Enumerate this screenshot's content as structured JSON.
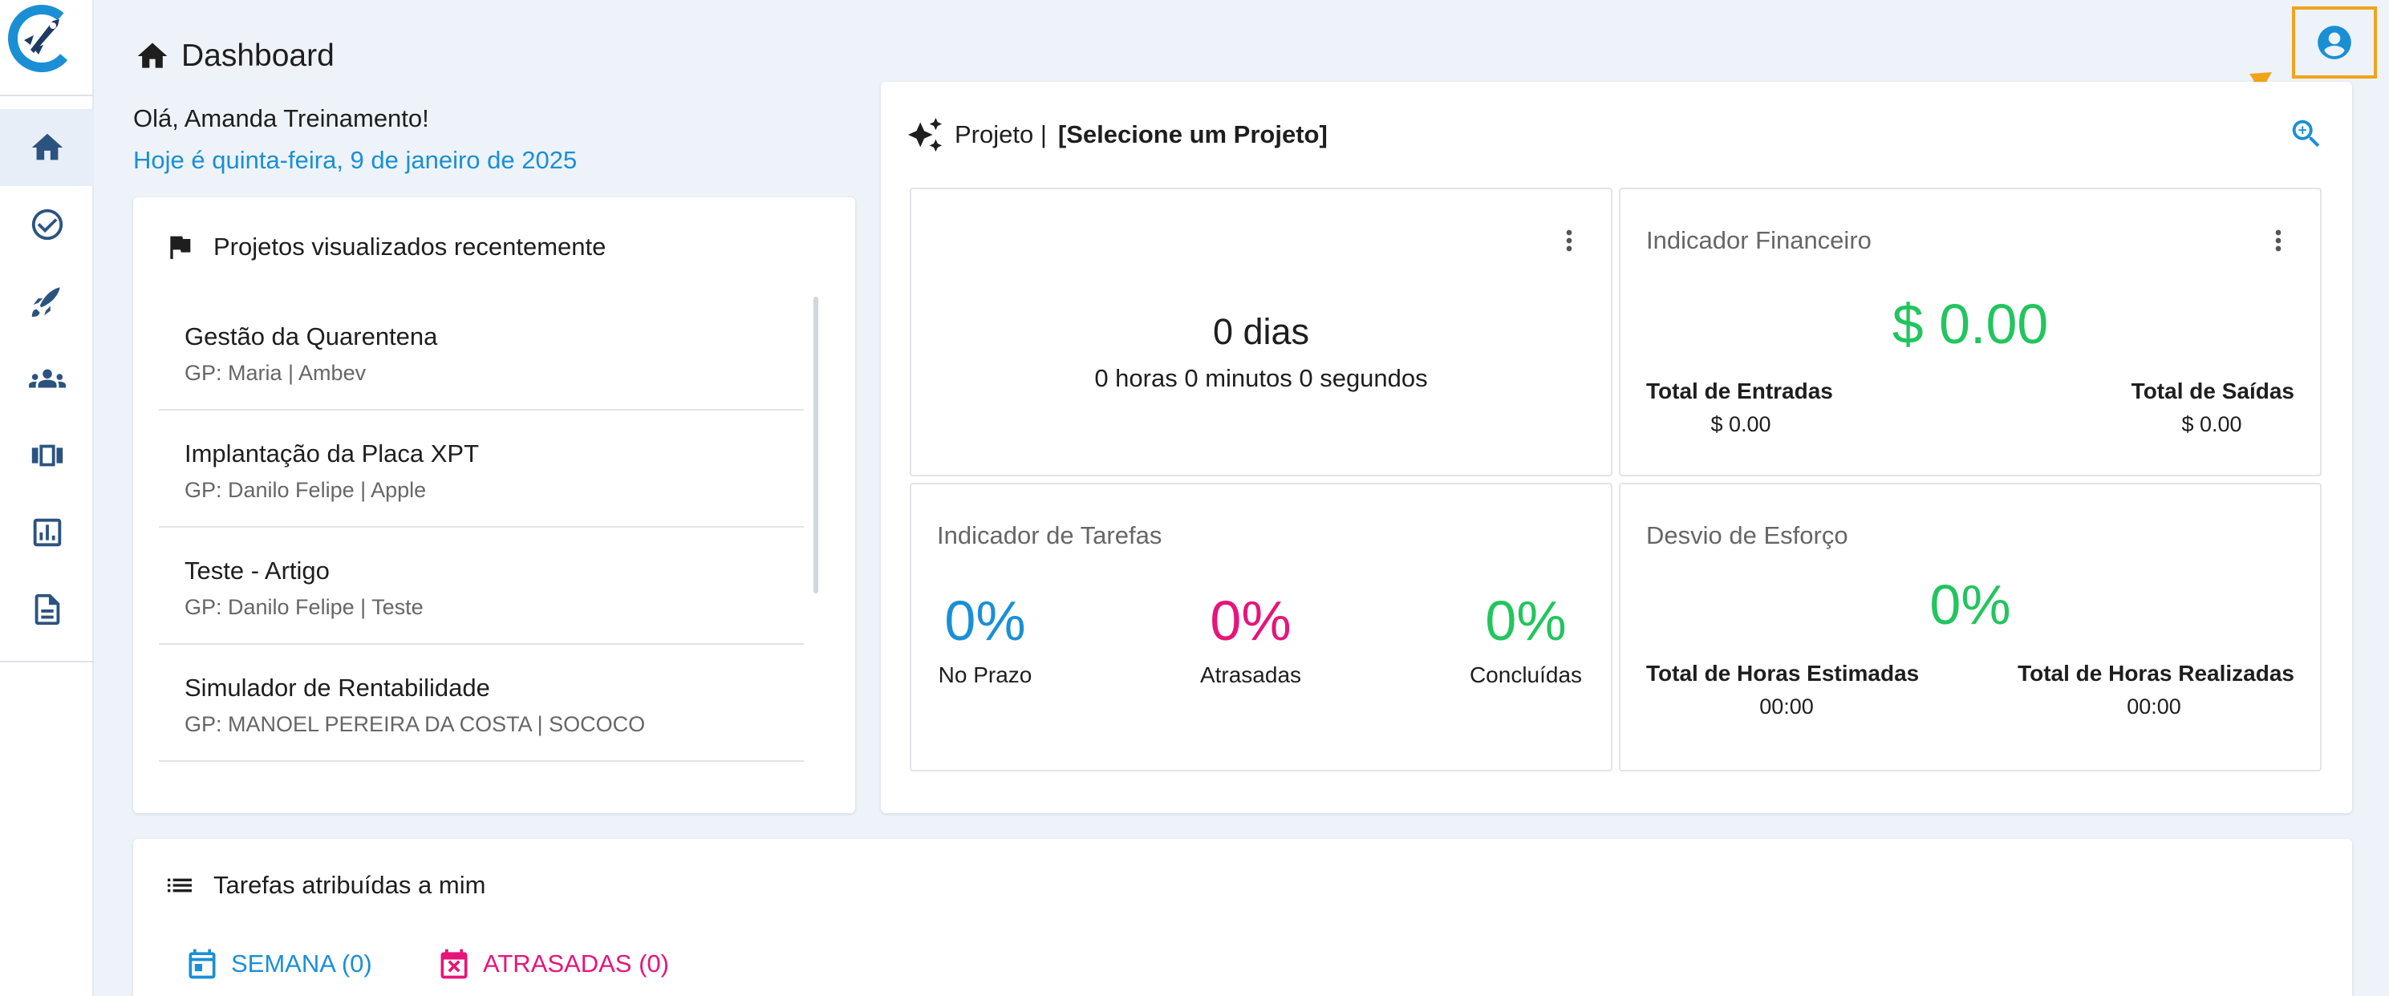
{
  "header": {
    "title": "Dashboard"
  },
  "greeting": "Olá, Amanda Treinamento!",
  "date_line": "Hoje é quinta-feira, 9 de janeiro de 2025",
  "recent_projects": {
    "title": "Projetos visualizados recentemente",
    "items": [
      {
        "name": "Gestão da Quarentena",
        "gp": "GP: Maria | Ambev"
      },
      {
        "name": "Implantação da Placa XPT",
        "gp": "GP: Danilo Felipe | Apple"
      },
      {
        "name": "Teste - Artigo",
        "gp": "GP: Danilo Felipe | Teste"
      },
      {
        "name": "Simulador de Rentabilidade",
        "gp": "GP: MANOEL PEREIRA DA COSTA | SOCOCO"
      }
    ]
  },
  "project_panel": {
    "label": "Projeto |",
    "selection": "[Selecione um Projeto]",
    "timer": {
      "days": "0 dias",
      "detail": "0 horas 0 minutos 0 segundos"
    },
    "financial": {
      "title": "Indicador Financeiro",
      "total": "$ 0.00",
      "in_label": "Total de Entradas",
      "in_value": "$ 0.00",
      "out_label": "Total de Saídas",
      "out_value": "$ 0.00"
    },
    "tasks_indicator": {
      "title": "Indicador de Tarefas",
      "on_time_pct": "0%",
      "on_time_label": "No Prazo",
      "late_pct": "0%",
      "late_label": "Atrasadas",
      "done_pct": "0%",
      "done_label": "Concluídas"
    },
    "effort": {
      "title": "Desvio de Esforço",
      "pct": "0%",
      "est_label": "Total de Horas Estimadas",
      "est_value": "00:00",
      "real_label": "Total de Horas Realizadas",
      "real_value": "00:00"
    }
  },
  "my_tasks": {
    "title": "Tarefas atribuídas a mim",
    "week_tab": "SEMANA (0)",
    "late_tab": "ATRASADAS (0)"
  },
  "colors": {
    "accent_blue": "#1a8fd6",
    "green": "#22c55e",
    "pink": "#e6157a",
    "highlight": "#f0a31c"
  }
}
